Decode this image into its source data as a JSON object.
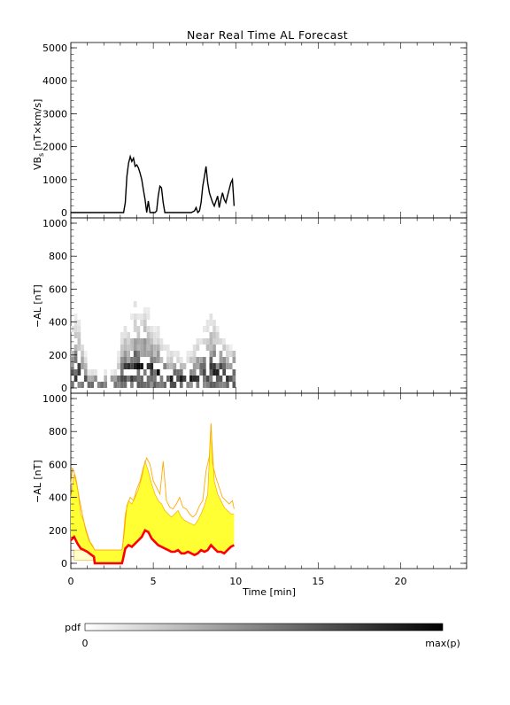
{
  "title": "Near Real Time AL Forecast",
  "colorbar": {
    "label": "pdf",
    "min_label": "0",
    "max_label": "max(p)"
  },
  "chart_data": [
    {
      "type": "line",
      "name": "vbs-panel",
      "ylabel_main": "VB",
      "ylabel_sub": "s",
      "ylabel_unit": "[nT×km/s]",
      "ylim": [
        0,
        5000
      ],
      "xlim": [
        0,
        24
      ],
      "yticks": [
        0,
        1000,
        2000,
        3000,
        4000,
        5000
      ],
      "line_color": "#000000",
      "series": [
        {
          "x": [
            0,
            0.5,
            1,
            1.5,
            2,
            2.5,
            3,
            3.2,
            3.3,
            3.4,
            3.5,
            3.6,
            3.7,
            3.8,
            3.9,
            4.0,
            4.1,
            4.2,
            4.3,
            4.4,
            4.5,
            4.6,
            4.7,
            4.8,
            4.9,
            5.0,
            5.1,
            5.2,
            5.3,
            5.4,
            5.5,
            5.6,
            5.7,
            5.8,
            5.9,
            6.0,
            6.5,
            7.0,
            7.3,
            7.5,
            7.6,
            7.7,
            7.8,
            7.9,
            8.0,
            8.1,
            8.2,
            8.3,
            8.4,
            8.5,
            8.6,
            8.7,
            8.8,
            8.9,
            9.0,
            9.1,
            9.2,
            9.3,
            9.4,
            9.5,
            9.6,
            9.7,
            9.8,
            9.9
          ],
          "y": [
            0,
            0,
            0,
            0,
            0,
            0,
            0,
            0,
            300,
            1100,
            1500,
            1700,
            1550,
            1650,
            1400,
            1450,
            1350,
            1200,
            1000,
            700,
            400,
            0,
            350,
            0,
            0,
            0,
            0,
            50,
            500,
            800,
            750,
            300,
            0,
            0,
            0,
            0,
            0,
            0,
            0,
            50,
            150,
            0,
            50,
            300,
            800,
            1100,
            1400,
            900,
            600,
            450,
            300,
            200,
            350,
            500,
            150,
            400,
            600,
            400,
            300,
            500,
            700,
            900,
            1000,
            200
          ]
        }
      ]
    },
    {
      "type": "heatmap",
      "name": "pdf-panel",
      "ylabel": "−AL [nT]",
      "ylim": [
        0,
        1000
      ],
      "xlim": [
        0,
        24
      ],
      "yticks": [
        0,
        200,
        400,
        600,
        800,
        1000
      ],
      "median": [
        60,
        100,
        90,
        60,
        40,
        20,
        20,
        20,
        20,
        20,
        20,
        20,
        20,
        20,
        40,
        60,
        80,
        90,
        100,
        110,
        120,
        110,
        110,
        100,
        100,
        100,
        80,
        70,
        60,
        50,
        50,
        50,
        40,
        40,
        40,
        40,
        40,
        40,
        60,
        60,
        70,
        80,
        100,
        90,
        80,
        90,
        100,
        80,
        60,
        90
      ],
      "spread": [
        300,
        350,
        300,
        200,
        150,
        60,
        60,
        60,
        60,
        60,
        60,
        60,
        60,
        60,
        150,
        250,
        300,
        280,
        350,
        400,
        320,
        350,
        400,
        380,
        300,
        250,
        280,
        230,
        200,
        180,
        170,
        150,
        160,
        140,
        160,
        150,
        170,
        200,
        220,
        250,
        300,
        300,
        350,
        330,
        280,
        250,
        200,
        180,
        170,
        160
      ]
    },
    {
      "type": "area",
      "name": "forecast-panel",
      "ylabel": "−AL [nT]",
      "xlabel": "Time [min]",
      "ylim": [
        0,
        1000
      ],
      "xlim": [
        0,
        24
      ],
      "yticks": [
        0,
        200,
        400,
        600,
        800,
        1000
      ],
      "xticks": [
        0,
        5,
        10,
        15,
        20
      ],
      "red_line": {
        "x": [
          0,
          0.2,
          0.4,
          0.6,
          0.8,
          1.0,
          1.2,
          1.4,
          1.45,
          3.1,
          3.15,
          3.3,
          3.5,
          3.7,
          3.9,
          4.1,
          4.3,
          4.5,
          4.7,
          4.9,
          5.1,
          5.3,
          5.5,
          5.7,
          5.9,
          6.1,
          6.3,
          6.5,
          6.7,
          6.9,
          7.1,
          7.3,
          7.5,
          7.7,
          7.9,
          8.1,
          8.3,
          8.5,
          8.7,
          8.9,
          9.1,
          9.3,
          9.5,
          9.7,
          9.9
        ],
        "y": [
          140,
          160,
          120,
          90,
          80,
          70,
          55,
          40,
          0,
          0,
          20,
          90,
          110,
          100,
          120,
          140,
          160,
          200,
          190,
          150,
          130,
          110,
          100,
          90,
          80,
          70,
          70,
          80,
          60,
          60,
          70,
          60,
          50,
          60,
          80,
          70,
          80,
          110,
          90,
          70,
          70,
          60,
          80,
          100,
          110
        ]
      },
      "band_upper": {
        "x": [
          0,
          0.2,
          0.4,
          0.6,
          0.8,
          1.0,
          1.2,
          1.4,
          1.45,
          3.1,
          3.15,
          3.3,
          3.5,
          3.7,
          3.9,
          4.1,
          4.3,
          4.5,
          4.7,
          4.9,
          5.1,
          5.3,
          5.5,
          5.7,
          5.9,
          6.1,
          6.3,
          6.5,
          6.7,
          6.9,
          7.1,
          7.3,
          7.5,
          7.7,
          7.9,
          8.1,
          8.3,
          8.5,
          8.7,
          8.9,
          9.1,
          9.3,
          9.5,
          9.7,
          9.9
        ],
        "y": [
          400,
          540,
          460,
          300,
          250,
          180,
          120,
          90,
          80,
          80,
          120,
          300,
          380,
          360,
          400,
          450,
          520,
          620,
          560,
          480,
          420,
          380,
          360,
          320,
          300,
          280,
          300,
          320,
          280,
          260,
          250,
          240,
          230,
          260,
          300,
          350,
          420,
          840,
          500,
          420,
          380,
          340,
          320,
          300,
          300
        ]
      },
      "max_line": {
        "x": [
          0,
          0.1,
          0.3,
          0.5,
          0.7,
          0.9,
          1.1,
          1.3,
          1.45,
          3.1,
          3.2,
          3.4,
          3.6,
          3.8,
          4.0,
          4.2,
          4.4,
          4.6,
          4.8,
          5.0,
          5.2,
          5.4,
          5.6,
          5.8,
          6.0,
          6.2,
          6.4,
          6.6,
          6.8,
          7.0,
          7.2,
          7.4,
          7.6,
          7.8,
          8.0,
          8.2,
          8.4,
          8.5,
          8.6,
          8.8,
          9.0,
          9.2,
          9.4,
          9.6,
          9.8,
          9.9
        ],
        "y": [
          480,
          580,
          520,
          400,
          300,
          200,
          140,
          110,
          80,
          80,
          150,
          350,
          400,
          380,
          450,
          500,
          580,
          640,
          600,
          500,
          460,
          420,
          620,
          380,
          340,
          330,
          360,
          400,
          340,
          330,
          300,
          280,
          300,
          350,
          380,
          560,
          650,
          850,
          600,
          520,
          460,
          400,
          380,
          360,
          380,
          330
        ]
      },
      "flat_band": {
        "x_start": 0.2,
        "x_end": 3.1,
        "y_low": 20,
        "y_high": 80
      },
      "colors": {
        "band": "#ffff33",
        "envelope": "#ffaa00",
        "median": "#ff0000",
        "flat": "#ffffcc"
      }
    }
  ]
}
